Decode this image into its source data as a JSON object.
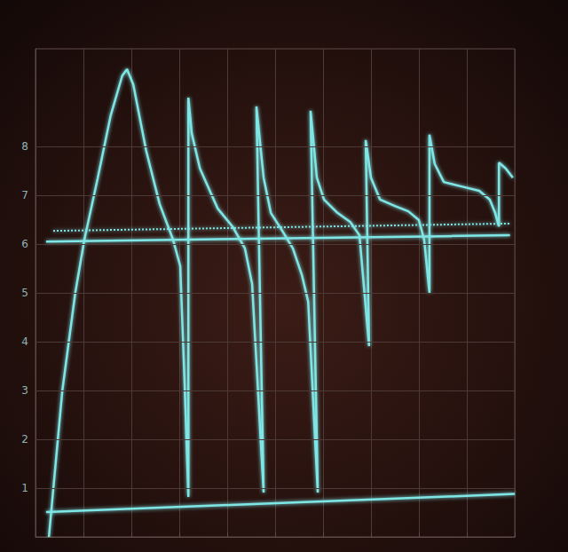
{
  "chart_data": {
    "type": "line",
    "xlim": [
      0,
      10
    ],
    "xticks": [
      0,
      1,
      2,
      3,
      4,
      5,
      6,
      7,
      8,
      9,
      10
    ],
    "ylim": [
      0,
      10
    ],
    "yticks": [
      1,
      2,
      3,
      4,
      5,
      6,
      7,
      8
    ],
    "grid": true,
    "tick_labels": "y",
    "marker": "none",
    "series": [
      {
        "color": "#7fe6e6",
        "line_style": "solid",
        "x": [
          0.28,
          0.56,
          0.83,
          1.02,
          1.3,
          1.57,
          1.81,
          1.91,
          2.04,
          2.31,
          2.59,
          2.87,
          3.02,
          3.11,
          3.19,
          3.19,
          3.26,
          3.43,
          3.8,
          4.11,
          4.37,
          4.52,
          4.76,
          4.61,
          4.76,
          4.91,
          5.15,
          5.37,
          5.56,
          5.69,
          5.89,
          5.74,
          5.87,
          6.02,
          6.3,
          6.57,
          6.76,
          6.96,
          6.89,
          7.0,
          7.19,
          7.5,
          7.78,
          8.0,
          8.11,
          8.22,
          8.22,
          8.33,
          8.52,
          8.89,
          9.26,
          9.48,
          9.59,
          9.67,
          9.67,
          9.81,
          9.96
        ],
        "values": [
          0,
          3.0,
          5.0,
          6.09,
          7.36,
          8.64,
          9.45,
          9.58,
          9.27,
          7.91,
          6.82,
          6.09,
          5.55,
          3.18,
          0.82,
          9.0,
          8.27,
          7.55,
          6.73,
          6.36,
          5.91,
          5.18,
          0.91,
          8.82,
          7.36,
          6.64,
          6.27,
          5.91,
          5.36,
          4.82,
          0.91,
          8.73,
          7.36,
          6.91,
          6.64,
          6.45,
          6.18,
          3.91,
          8.13,
          7.36,
          6.91,
          6.78,
          6.67,
          6.49,
          6.09,
          5.0,
          8.24,
          7.64,
          7.27,
          7.18,
          7.09,
          6.91,
          6.64,
          6.36,
          7.67,
          7.55,
          7.36
        ]
      },
      {
        "color": "#7fe6e6",
        "line_style": "solid",
        "x": [
          0.22,
          9.9
        ],
        "values": [
          6.05,
          6.18
        ]
      },
      {
        "color": "#7fe6e6",
        "line_style": "dotted",
        "x": [
          0.37,
          9.9
        ],
        "values": [
          6.27,
          6.42
        ]
      },
      {
        "color": "#7fe6e6",
        "line_style": "solid",
        "x": [
          0.22,
          10.0
        ],
        "values": [
          0.51,
          0.88
        ]
      }
    ]
  }
}
